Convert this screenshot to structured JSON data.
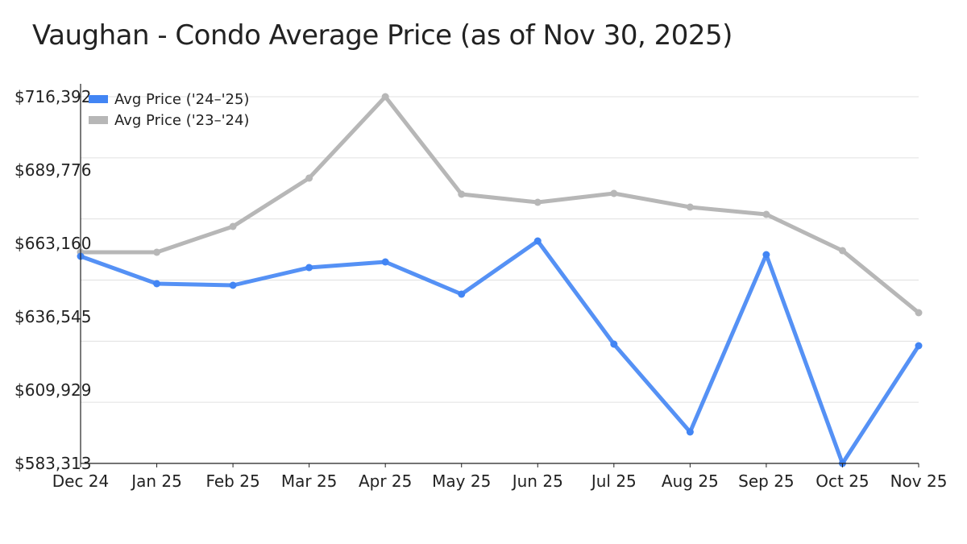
{
  "title": "Vaughan - Condo Average Price (as of Nov 30, 2025)",
  "chart_data": {
    "type": "line",
    "title": "Vaughan - Condo Average Price (as of Nov 30, 2025)",
    "xlabel": "",
    "ylabel": "",
    "categories": [
      "Dec 24",
      "Jan 25",
      "Feb 25",
      "Mar 25",
      "Apr 25",
      "May 25",
      "Jun 25",
      "Jul 25",
      "Aug 25",
      "Sep 25",
      "Oct 25",
      "Nov 25"
    ],
    "ylim": [
      583313,
      716392
    ],
    "yticks": [
      "$583,313",
      "$609,929",
      "$636,545",
      "$663,160",
      "$689,776",
      "$716,392"
    ],
    "grid": true,
    "legend_position": "top-left",
    "series": [
      {
        "name": "Avg Price ('24–'25)",
        "color": "#4285f4",
        "values": [
          658480,
          648536,
          647951,
          654386,
          656433,
          644734,
          664037,
          626600,
          594720,
          659065,
          583313,
          626015
        ]
      },
      {
        "name": "Avg Price ('23–'24)",
        "color": "#b7b7b7",
        "values": [
          659943,
          659943,
          669302,
          686851,
          716392,
          681001,
          678077,
          681294,
          676322,
          673689,
          660528,
          638007
        ]
      }
    ]
  }
}
